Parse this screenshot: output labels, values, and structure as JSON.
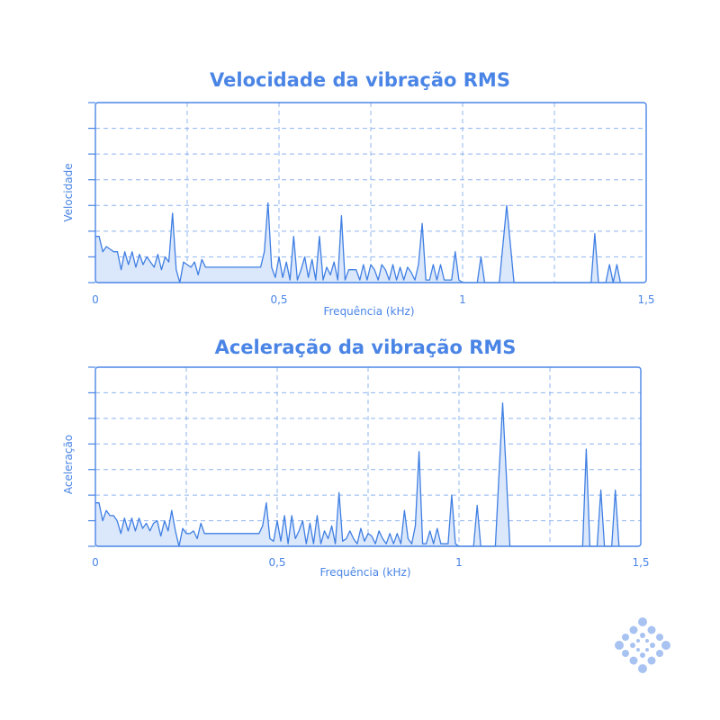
{
  "colors": {
    "accent": "#4a85e6",
    "fill": "#dbe7fa",
    "grid": "#8fb4ef",
    "logo": "#a8c3f2"
  },
  "chart_data": [
    {
      "type": "area",
      "title": "Velocidade da vibração RMS",
      "xlabel": "Frequência (kHz)",
      "ylabel": "Velocidade",
      "xlim": [
        0,
        1.5
      ],
      "ylim": [
        0,
        7
      ],
      "x_ticks": [
        0,
        0.5,
        1,
        1.5
      ],
      "x_tick_labels": [
        "0",
        "0,5",
        "1",
        "1,5"
      ],
      "y_ticks": [
        0,
        1,
        2,
        3,
        4,
        5,
        6,
        7
      ],
      "grid": true,
      "series": [
        {
          "x": [
            0,
            0.01,
            0.02,
            0.03,
            0.04,
            0.05,
            0.06,
            0.07,
            0.08,
            0.09,
            0.1,
            0.11,
            0.12,
            0.13,
            0.14,
            0.15,
            0.16,
            0.17,
            0.18,
            0.19,
            0.2,
            0.21,
            0.22,
            0.23,
            0.24,
            0.25,
            0.26,
            0.27,
            0.28,
            0.29,
            0.3,
            0.31,
            0.45,
            0.46,
            0.47,
            0.48,
            0.49,
            0.5,
            0.51,
            0.52,
            0.53,
            0.54,
            0.55,
            0.56,
            0.57,
            0.58,
            0.59,
            0.6,
            0.61,
            0.62,
            0.63,
            0.64,
            0.65,
            0.66,
            0.67,
            0.68,
            0.69,
            0.7,
            0.71,
            0.72,
            0.73,
            0.74,
            0.75,
            0.76,
            0.77,
            0.78,
            0.79,
            0.8,
            0.81,
            0.82,
            0.83,
            0.84,
            0.85,
            0.86,
            0.87,
            0.88,
            0.89,
            0.9,
            0.91,
            0.92,
            0.93,
            0.94,
            0.95,
            0.96,
            0.97,
            0.98,
            0.99,
            1.0,
            1.04,
            1.05,
            1.06,
            1.1,
            1.12,
            1.14,
            1.35,
            1.36,
            1.37,
            1.38,
            1.39,
            1.4,
            1.41,
            1.42,
            1.43
          ],
          "y": [
            1.8,
            1.8,
            1.2,
            1.4,
            1.3,
            1.2,
            1.2,
            0.5,
            1.2,
            0.7,
            1.2,
            0.6,
            1.1,
            0.7,
            1.0,
            0.8,
            0.6,
            1.1,
            0.5,
            1.0,
            0.8,
            2.7,
            0.5,
            0.0,
            0.8,
            0.7,
            0.6,
            0.8,
            0.3,
            0.9,
            0.6,
            0.6,
            0.6,
            1.2,
            3.1,
            0.6,
            0.2,
            1.0,
            0.2,
            0.8,
            0.1,
            1.8,
            0.1,
            0.5,
            1.0,
            0.2,
            0.9,
            0.1,
            1.8,
            0.1,
            0.6,
            0.3,
            0.8,
            0.1,
            2.6,
            0.1,
            0.5,
            0.5,
            0.5,
            0.1,
            0.7,
            0.1,
            0.7,
            0.5,
            0.1,
            0.7,
            0.5,
            0.1,
            0.7,
            0.1,
            0.6,
            0.1,
            0.6,
            0.4,
            0.1,
            0.7,
            2.3,
            0.1,
            0.1,
            0.7,
            0.1,
            0.7,
            0.1,
            0.1,
            0.1,
            1.2,
            0.1,
            0.0,
            0.0,
            1.0,
            0.0,
            0.0,
            3.0,
            0.0,
            0.0,
            1.9,
            0.0,
            0.0,
            0.0,
            0.7,
            0.0,
            0.7,
            0.0
          ]
        }
      ]
    },
    {
      "type": "area",
      "title": "Aceleração da vibração RMS",
      "xlabel": "Frequência (kHz)",
      "ylabel": "Aceleração",
      "xlim": [
        0,
        1.5
      ],
      "ylim": [
        0,
        7
      ],
      "x_ticks": [
        0,
        0.5,
        1,
        1.5
      ],
      "x_tick_labels": [
        "0",
        "0,5",
        "1",
        "1,5"
      ],
      "y_ticks": [
        0,
        1,
        2,
        3,
        4,
        5,
        6,
        7
      ],
      "grid": true,
      "series": [
        {
          "x": [
            0,
            0.01,
            0.02,
            0.03,
            0.04,
            0.05,
            0.06,
            0.07,
            0.08,
            0.09,
            0.1,
            0.11,
            0.12,
            0.13,
            0.14,
            0.15,
            0.16,
            0.17,
            0.18,
            0.19,
            0.2,
            0.21,
            0.22,
            0.23,
            0.24,
            0.25,
            0.26,
            0.27,
            0.28,
            0.29,
            0.3,
            0.31,
            0.45,
            0.46,
            0.47,
            0.48,
            0.49,
            0.5,
            0.51,
            0.52,
            0.53,
            0.54,
            0.55,
            0.56,
            0.57,
            0.58,
            0.59,
            0.6,
            0.61,
            0.62,
            0.63,
            0.64,
            0.65,
            0.66,
            0.67,
            0.68,
            0.69,
            0.7,
            0.71,
            0.72,
            0.73,
            0.74,
            0.75,
            0.76,
            0.77,
            0.78,
            0.79,
            0.8,
            0.81,
            0.82,
            0.83,
            0.84,
            0.85,
            0.86,
            0.87,
            0.88,
            0.89,
            0.9,
            0.91,
            0.92,
            0.93,
            0.94,
            0.95,
            0.96,
            0.97,
            0.98,
            0.99,
            1.0,
            1.04,
            1.05,
            1.06,
            1.1,
            1.12,
            1.14,
            1.34,
            1.35,
            1.36,
            1.38,
            1.39,
            1.4,
            1.42,
            1.43,
            1.44
          ],
          "y": [
            1.7,
            1.7,
            1.0,
            1.4,
            1.2,
            1.2,
            1.0,
            0.5,
            1.1,
            0.6,
            1.1,
            0.6,
            1.1,
            0.7,
            0.9,
            0.6,
            0.9,
            1.0,
            0.4,
            1.0,
            0.6,
            1.4,
            0.6,
            0.0,
            0.7,
            0.5,
            0.5,
            0.6,
            0.3,
            0.9,
            0.5,
            0.5,
            0.5,
            0.8,
            1.7,
            0.3,
            0.2,
            1.0,
            0.2,
            1.2,
            0.1,
            1.2,
            0.3,
            0.6,
            1.0,
            0.1,
            0.9,
            0.1,
            1.2,
            0.1,
            0.6,
            0.3,
            0.8,
            0.1,
            2.1,
            0.2,
            0.3,
            0.6,
            0.3,
            0.1,
            0.7,
            0.2,
            0.5,
            0.4,
            0.1,
            0.6,
            0.3,
            0.1,
            0.5,
            0.1,
            0.5,
            0.1,
            1.4,
            0.3,
            0.1,
            0.8,
            3.7,
            0.1,
            0.1,
            0.6,
            0.1,
            0.7,
            0.1,
            0.1,
            0.1,
            2.0,
            0.1,
            0.0,
            0.0,
            1.6,
            0.0,
            0.0,
            5.6,
            0.0,
            0.0,
            3.8,
            0.0,
            0.0,
            2.2,
            0.0,
            0.0,
            2.2,
            0.0
          ]
        }
      ]
    }
  ]
}
